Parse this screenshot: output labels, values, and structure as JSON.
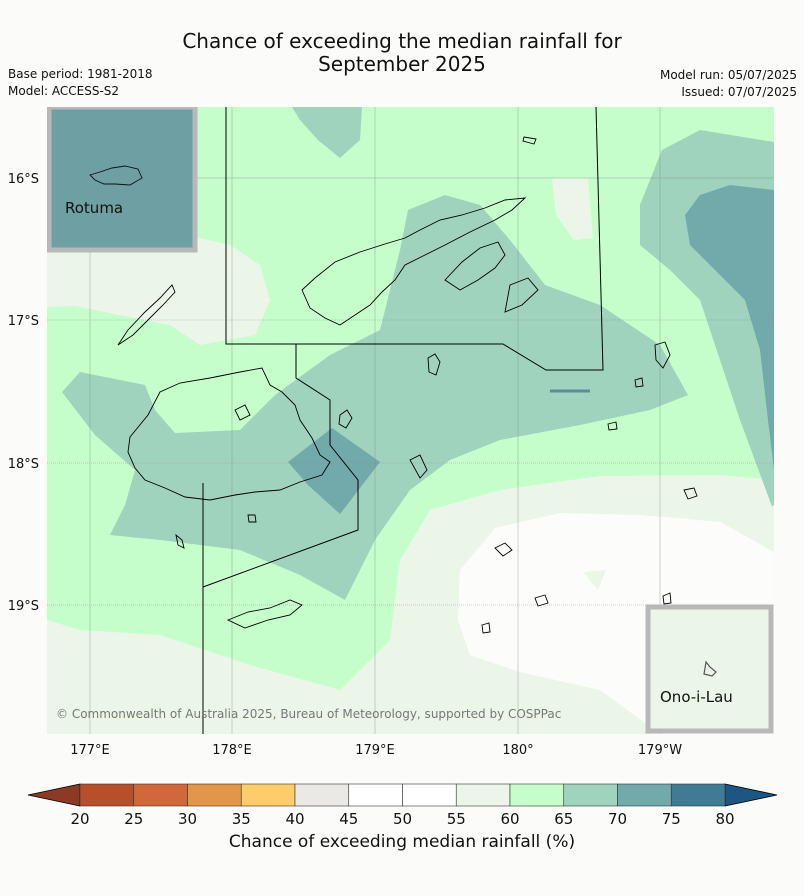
{
  "title_line1": "Chance of exceeding the median rainfall for",
  "title_line2": "September 2025",
  "meta": {
    "base_period": "Base period: 1981-2018",
    "model": "Model: ACCESS-S2",
    "model_run": "Model run: 05/07/2025",
    "issued": "Issued: 07/07/2025"
  },
  "map": {
    "lat_labels": [
      "16°S",
      "17°S",
      "18°S",
      "19°S"
    ],
    "lon_labels": [
      "177°E",
      "178°E",
      "179°E",
      "180°",
      "179°W"
    ],
    "inset_rotuma": "Rotuma",
    "inset_onoilau": "Ono-i-Lau",
    "copyright": "© Commonwealth of Australia 2025, Bureau of Meteorology, supported by COSPPac"
  },
  "colorbar": {
    "label": "Chance of exceeding median rainfall (%)",
    "ticks": [
      "20",
      "25",
      "30",
      "35",
      "40",
      "45",
      "50",
      "55",
      "60",
      "65",
      "70",
      "75",
      "80"
    ],
    "colors": [
      "#b64f2a",
      "#d0683a",
      "#e3954a",
      "#fecd6a",
      "#ebe9e5",
      "#ffffff",
      "#ffffff",
      "#ebf6e8",
      "#c6fecb",
      "#9fd3bd",
      "#72a9aa",
      "#3f7b95"
    ],
    "under_color": "#8c3a23",
    "over_color": "#1f5583"
  }
}
